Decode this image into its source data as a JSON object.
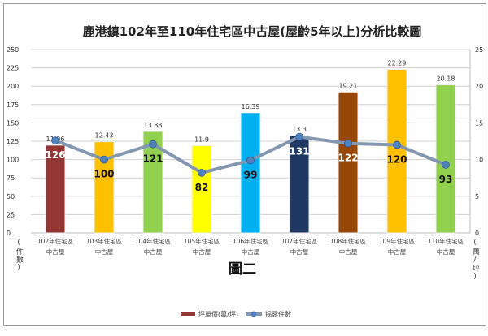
{
  "chart_data": {
    "type": "bar",
    "title": "鹿港鎮102年至110年住宅區中古屋(屋齡5年以上)分析比較圖",
    "subtitle": "圖二",
    "categories": [
      [
        "102年住宅區",
        "中古屋"
      ],
      [
        "103年住宅區",
        "中古屋"
      ],
      [
        "104年住宅區",
        "中古屋"
      ],
      [
        "105年住宅區",
        "中古屋"
      ],
      [
        "106年住宅區",
        "中古屋"
      ],
      [
        "107年住宅區",
        "中古屋"
      ],
      [
        "108年住宅區",
        "中古屋"
      ],
      [
        "109年住宅區",
        "中古屋"
      ],
      [
        "110年住宅區",
        "中古屋"
      ]
    ],
    "ylabel_left": "(件數)",
    "ylabel_right": "(萬/坪)",
    "ylim_left": [
      0,
      250
    ],
    "yticks_left": [
      0,
      25,
      50,
      75,
      100,
      125,
      150,
      175,
      200,
      225,
      250
    ],
    "ylim_right": [
      0,
      25
    ],
    "yticks_right": [
      0,
      5,
      10,
      15,
      20,
      25
    ],
    "grid": true,
    "legend": "bottom",
    "series": [
      {
        "name": "坪單價(萬/坪)",
        "type": "bar",
        "axis": "right",
        "values": [
          11.96,
          12.43,
          13.83,
          11.9,
          16.39,
          13.3,
          19.21,
          22.29,
          20.18
        ],
        "colors": [
          "#943634",
          "#ffc000",
          "#92d050",
          "#ffff00",
          "#00b0f0",
          "#1f3864",
          "#984806",
          "#ffc000",
          "#92d050"
        ],
        "legend_color": "#943634"
      },
      {
        "name": "揭露件數",
        "type": "line",
        "axis": "left",
        "values": [
          126,
          100,
          121,
          82,
          99,
          131,
          122,
          120,
          93
        ],
        "color": "#8497b0",
        "marker_color": "#4f81bd"
      }
    ]
  }
}
